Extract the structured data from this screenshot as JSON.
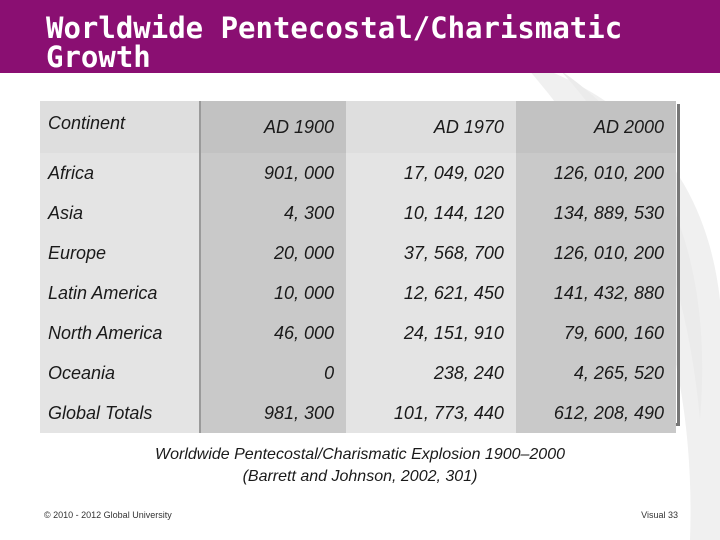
{
  "slide": {
    "title_line1": "Worldwide Pentecostal/Charismatic",
    "title_line2": "Growth"
  },
  "table": {
    "headers": [
      "Continent",
      "AD 1900",
      "AD 1970",
      "AD 2000"
    ],
    "rows": [
      [
        "Africa",
        "901, 000",
        "17, 049, 020",
        "126, 010, 200"
      ],
      [
        "Asia",
        "4, 300",
        "10, 144, 120",
        "134, 889, 530"
      ],
      [
        "Europe",
        "20, 000",
        "37, 568, 700",
        "126, 010, 200"
      ],
      [
        "Latin America",
        "10, 000",
        "12, 621, 450",
        "141, 432, 880"
      ],
      [
        "North America",
        "46, 000",
        "24, 151, 910",
        "79, 600, 160"
      ],
      [
        "Oceania",
        "0",
        "238, 240",
        "4, 265, 520"
      ],
      [
        "Global Totals",
        "981, 300",
        "101, 773, 440",
        "612, 208, 490"
      ]
    ]
  },
  "caption": {
    "line1": "Worldwide Pentecostal/Charismatic Explosion 1900–2000",
    "line2": "(Barrett and Johnson, 2002, 301)"
  },
  "footer": {
    "copyright": "© 2010 - 2012 Global University",
    "page_label": "Visual 33"
  },
  "colors": {
    "title_bar": "#8a0f72",
    "column_dark": "#c9c9c9",
    "column_light": "#e4e4e4"
  }
}
